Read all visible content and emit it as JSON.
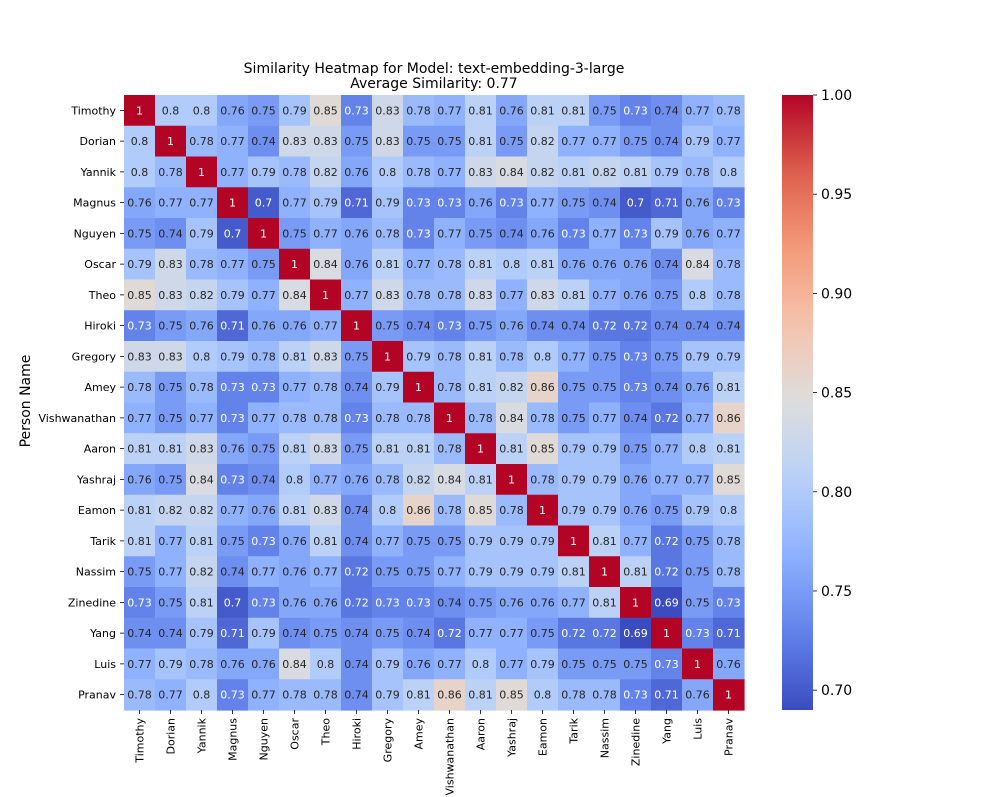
{
  "chart_data": {
    "type": "heatmap",
    "title_line1": "Similarity Heatmap for Model: text-embedding-3-large",
    "title_line2": "Average Similarity: 0.77",
    "ylabel": "Person Name",
    "xlabel": "",
    "labels": [
      "Timothy",
      "Dorian",
      "Yannik",
      "Magnus",
      "Nguyen",
      "Oscar",
      "Theo",
      "Hiroki",
      "Gregory",
      "Amey",
      "Vishwanathan",
      "Aaron",
      "Yashraj",
      "Eamon",
      "Tarik",
      "Nassim",
      "Zinedine",
      "Yang",
      "Luis",
      "Pranav"
    ],
    "matrix": [
      [
        1,
        0.8,
        0.8,
        0.76,
        0.75,
        0.79,
        0.85,
        0.73,
        0.83,
        0.78,
        0.77,
        0.81,
        0.76,
        0.81,
        0.81,
        0.75,
        0.73,
        0.74,
        0.77,
        0.78
      ],
      [
        0.8,
        1,
        0.78,
        0.77,
        0.74,
        0.83,
        0.83,
        0.75,
        0.83,
        0.75,
        0.75,
        0.81,
        0.75,
        0.82,
        0.77,
        0.77,
        0.75,
        0.74,
        0.79,
        0.77
      ],
      [
        0.8,
        0.78,
        1,
        0.77,
        0.79,
        0.78,
        0.82,
        0.76,
        0.8,
        0.78,
        0.77,
        0.83,
        0.84,
        0.82,
        0.81,
        0.82,
        0.81,
        0.79,
        0.78,
        0.8
      ],
      [
        0.76,
        0.77,
        0.77,
        1,
        0.7,
        0.77,
        0.79,
        0.71,
        0.79,
        0.73,
        0.73,
        0.76,
        0.73,
        0.77,
        0.75,
        0.74,
        0.7,
        0.71,
        0.76,
        0.73
      ],
      [
        0.75,
        0.74,
        0.79,
        0.7,
        1,
        0.75,
        0.77,
        0.76,
        0.78,
        0.73,
        0.77,
        0.75,
        0.74,
        0.76,
        0.73,
        0.77,
        0.73,
        0.79,
        0.76,
        0.77
      ],
      [
        0.79,
        0.83,
        0.78,
        0.77,
        0.75,
        1,
        0.84,
        0.76,
        0.81,
        0.77,
        0.78,
        0.81,
        0.8,
        0.81,
        0.76,
        0.76,
        0.76,
        0.74,
        0.84,
        0.78
      ],
      [
        0.85,
        0.83,
        0.82,
        0.79,
        0.77,
        0.84,
        1,
        0.77,
        0.83,
        0.78,
        0.78,
        0.83,
        0.77,
        0.83,
        0.81,
        0.77,
        0.76,
        0.75,
        0.8,
        0.78
      ],
      [
        0.73,
        0.75,
        0.76,
        0.71,
        0.76,
        0.76,
        0.77,
        1,
        0.75,
        0.74,
        0.73,
        0.75,
        0.76,
        0.74,
        0.74,
        0.72,
        0.72,
        0.74,
        0.74,
        0.74
      ],
      [
        0.83,
        0.83,
        0.8,
        0.79,
        0.78,
        0.81,
        0.83,
        0.75,
        1,
        0.79,
        0.78,
        0.81,
        0.78,
        0.8,
        0.77,
        0.75,
        0.73,
        0.75,
        0.79,
        0.79
      ],
      [
        0.78,
        0.75,
        0.78,
        0.73,
        0.73,
        0.77,
        0.78,
        0.74,
        0.79,
        1,
        0.78,
        0.81,
        0.82,
        0.86,
        0.75,
        0.75,
        0.73,
        0.74,
        0.76,
        0.81
      ],
      [
        0.77,
        0.75,
        0.77,
        0.73,
        0.77,
        0.78,
        0.78,
        0.73,
        0.78,
        0.78,
        1,
        0.78,
        0.84,
        0.78,
        0.75,
        0.77,
        0.74,
        0.72,
        0.77,
        0.86
      ],
      [
        0.81,
        0.81,
        0.83,
        0.76,
        0.75,
        0.81,
        0.83,
        0.75,
        0.81,
        0.81,
        0.78,
        1,
        0.81,
        0.85,
        0.79,
        0.79,
        0.75,
        0.77,
        0.8,
        0.81
      ],
      [
        0.76,
        0.75,
        0.84,
        0.73,
        0.74,
        0.8,
        0.77,
        0.76,
        0.78,
        0.82,
        0.84,
        0.81,
        1,
        0.78,
        0.79,
        0.79,
        0.76,
        0.77,
        0.77,
        0.85
      ],
      [
        0.81,
        0.82,
        0.82,
        0.77,
        0.76,
        0.81,
        0.83,
        0.74,
        0.8,
        0.86,
        0.78,
        0.85,
        0.78,
        1,
        0.79,
        0.79,
        0.76,
        0.75,
        0.79,
        0.8
      ],
      [
        0.81,
        0.77,
        0.81,
        0.75,
        0.73,
        0.76,
        0.81,
        0.74,
        0.77,
        0.75,
        0.75,
        0.79,
        0.79,
        0.79,
        1,
        0.81,
        0.77,
        0.72,
        0.75,
        0.78
      ],
      [
        0.75,
        0.77,
        0.82,
        0.74,
        0.77,
        0.76,
        0.77,
        0.72,
        0.75,
        0.75,
        0.77,
        0.79,
        0.79,
        0.79,
        0.81,
        1,
        0.81,
        0.72,
        0.75,
        0.78
      ],
      [
        0.73,
        0.75,
        0.81,
        0.7,
        0.73,
        0.76,
        0.76,
        0.72,
        0.73,
        0.73,
        0.74,
        0.75,
        0.76,
        0.76,
        0.77,
        0.81,
        1,
        0.69,
        0.75,
        0.73
      ],
      [
        0.74,
        0.74,
        0.79,
        0.71,
        0.79,
        0.74,
        0.75,
        0.74,
        0.75,
        0.74,
        0.72,
        0.77,
        0.77,
        0.75,
        0.72,
        0.72,
        0.69,
        1,
        0.73,
        0.71
      ],
      [
        0.77,
        0.79,
        0.78,
        0.76,
        0.76,
        0.84,
        0.8,
        0.74,
        0.79,
        0.76,
        0.77,
        0.8,
        0.77,
        0.79,
        0.75,
        0.75,
        0.75,
        0.73,
        1,
        0.76
      ],
      [
        0.78,
        0.77,
        0.8,
        0.73,
        0.77,
        0.78,
        0.78,
        0.74,
        0.79,
        0.81,
        0.86,
        0.81,
        0.85,
        0.8,
        0.78,
        0.78,
        0.73,
        0.71,
        0.76,
        1
      ]
    ],
    "colorscale": "coolwarm",
    "vmin": 0.69,
    "vmax": 1.0,
    "colorbar_ticks": [
      "0.70",
      "0.75",
      "0.80",
      "0.85",
      "0.90",
      "0.95",
      "1.00"
    ]
  }
}
